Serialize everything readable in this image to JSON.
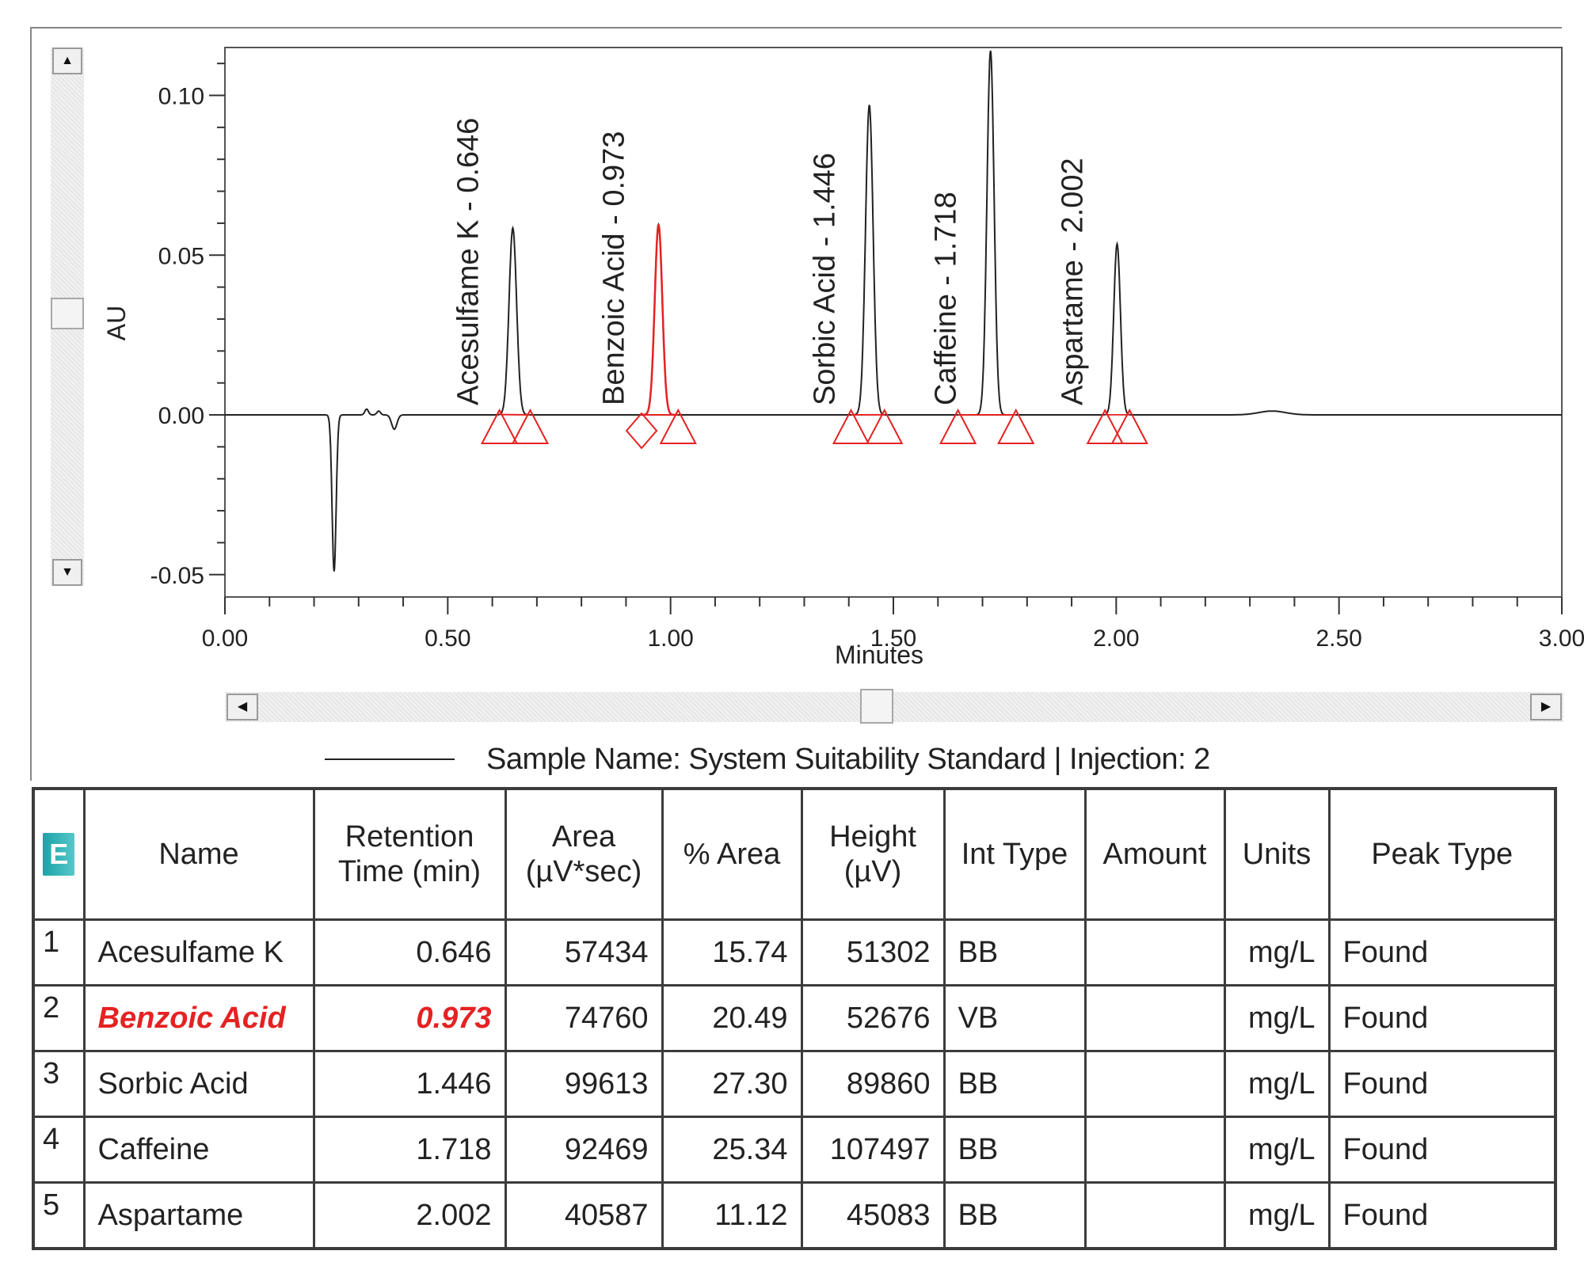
{
  "chart_data": {
    "type": "line",
    "xlabel": "Minutes",
    "ylabel": "AU",
    "xlim": [
      0.0,
      3.0
    ],
    "ylim": [
      -0.057,
      0.115
    ],
    "x_ticks": [
      "0.00",
      "0.50",
      "1.00",
      "1.50",
      "2.00",
      "2.50",
      "3.00"
    ],
    "y_ticks": [
      "0.10",
      "0.05",
      "0.00",
      "-0.05"
    ],
    "grid": false,
    "series_color": "#222222",
    "marker_color": "#e52222",
    "highlight_color": "#e52222",
    "baseline_features": [
      {
        "center": 0.245,
        "height": -0.049,
        "width": 0.0045
      },
      {
        "center": 0.318,
        "height": 0.0018,
        "width": 0.004
      },
      {
        "center": 0.345,
        "height": 0.0012,
        "width": 0.004
      },
      {
        "center": 0.38,
        "height": -0.0045,
        "width": 0.006
      },
      {
        "center": 2.35,
        "height": 0.0012,
        "width": 0.03
      }
    ],
    "peaks": [
      {
        "label": "Acesulfame K - 0.646",
        "rt": 0.646,
        "height": 0.0585,
        "width": 0.0085,
        "start": 0.616,
        "end": 0.685,
        "start_marker": "triangle",
        "end_marker": "triangle",
        "highlight": false
      },
      {
        "label": "Benzoic Acid - 0.973",
        "rt": 0.973,
        "height": 0.0595,
        "width": 0.0085,
        "start": 0.935,
        "end": 1.017,
        "start_marker": "diamond",
        "end_marker": "triangle",
        "highlight": true
      },
      {
        "label": "Sorbic Acid - 1.446",
        "rt": 1.446,
        "height": 0.097,
        "width": 0.0085,
        "start": 1.405,
        "end": 1.48,
        "start_marker": "triangle",
        "end_marker": "triangle",
        "highlight": false
      },
      {
        "label": "Caffeine - 1.718",
        "rt": 1.718,
        "height": 0.114,
        "width": 0.008,
        "start": 1.645,
        "end": 1.775,
        "start_marker": "triangle",
        "end_marker": "triangle",
        "highlight": false
      },
      {
        "label": "Aspartame - 2.002",
        "rt": 2.002,
        "height": 0.0535,
        "width": 0.0075,
        "start": 1.975,
        "end": 2.03,
        "start_marker": "triangle",
        "end_marker": "triangle",
        "highlight": false
      }
    ]
  },
  "legend": {
    "text": "Sample Name: System Suitability Standard | Injection: 2"
  },
  "scrollbars": {
    "up_arrow": "▲",
    "down_arrow": "▼",
    "left_arrow": "◀",
    "right_arrow": "▶"
  },
  "table": {
    "icon_letter": "E",
    "headers": {
      "name": "Name",
      "rt": "Retention Time (min)",
      "area": "Area (µV*sec)",
      "pct_area": "% Area",
      "height": "Height (µV)",
      "int_type": "Int Type",
      "amount": "Amount",
      "units": "Units",
      "peak_type": "Peak Type"
    },
    "rows": [
      {
        "num": "1",
        "name": "Acesulfame K",
        "rt": "0.646",
        "area": "57434",
        "pct_area": "15.74",
        "height": "51302",
        "int_type": "BB",
        "amount": "",
        "units": "mg/L",
        "peak_type": "Found",
        "highlight": false
      },
      {
        "num": "2",
        "name": "Benzoic Acid",
        "rt": "0.973",
        "area": "74760",
        "pct_area": "20.49",
        "height": "52676",
        "int_type": "VB",
        "amount": "",
        "units": "mg/L",
        "peak_type": "Found",
        "highlight": true
      },
      {
        "num": "3",
        "name": "Sorbic Acid",
        "rt": "1.446",
        "area": "99613",
        "pct_area": "27.30",
        "height": "89860",
        "int_type": "BB",
        "amount": "",
        "units": "mg/L",
        "peak_type": "Found",
        "highlight": false
      },
      {
        "num": "4",
        "name": "Caffeine",
        "rt": "1.718",
        "area": "92469",
        "pct_area": "25.34",
        "height": "107497",
        "int_type": "BB",
        "amount": "",
        "units": "mg/L",
        "peak_type": "Found",
        "highlight": false
      },
      {
        "num": "5",
        "name": "Aspartame",
        "rt": "2.002",
        "area": "40587",
        "pct_area": "11.12",
        "height": "45083",
        "int_type": "BB",
        "amount": "",
        "units": "mg/L",
        "peak_type": "Found",
        "highlight": false
      }
    ]
  }
}
